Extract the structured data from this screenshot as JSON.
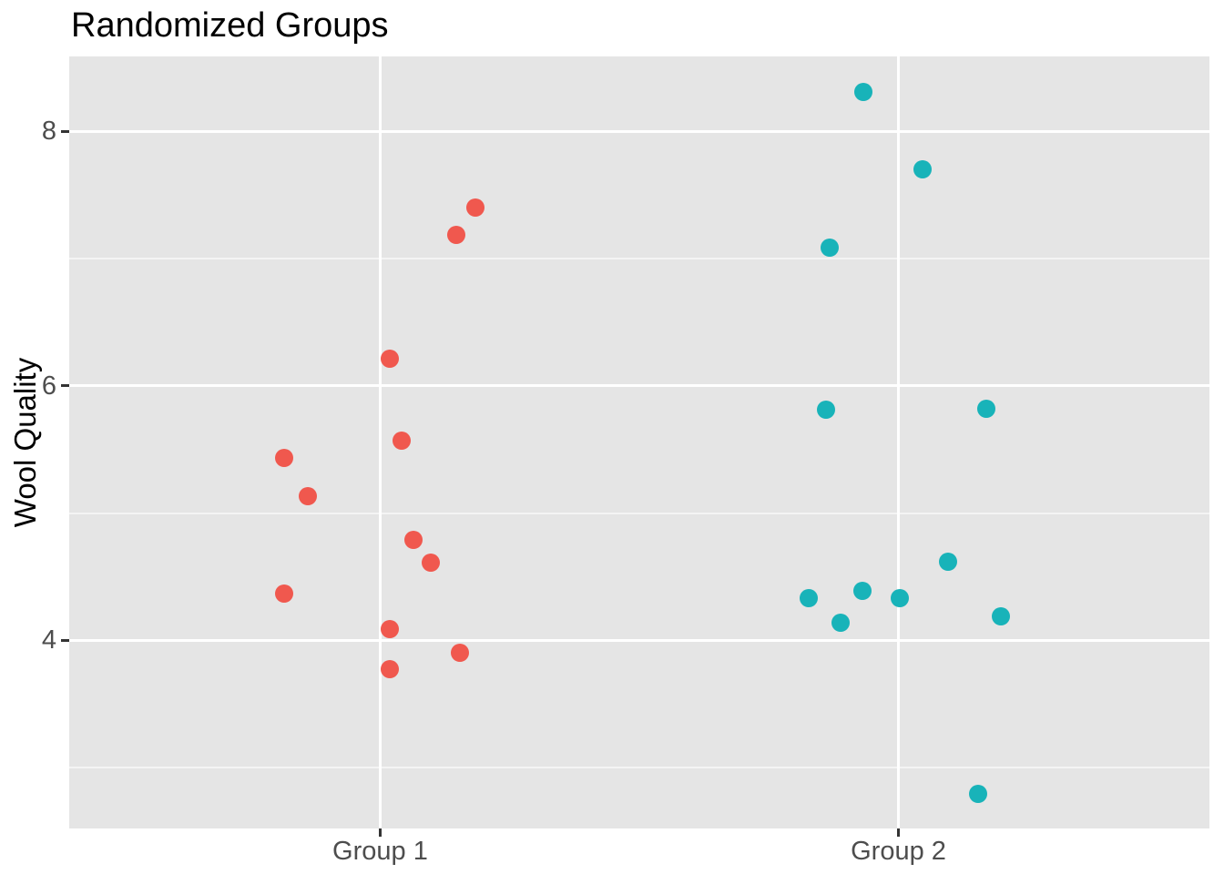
{
  "title": "Randomized Groups",
  "colors": {
    "group1": "#F0584E",
    "group2": "#18B3B9",
    "panel_background": "#E5E5E5",
    "gridline": "#FFFFFF",
    "tick_text": "#4D4D4D",
    "tick_mark": "#333333",
    "title_text": "#000000"
  },
  "chart_data": {
    "type": "scatter",
    "title": "Randomized Groups",
    "xlabel": "",
    "ylabel": "Wool Quality",
    "x_categories": [
      "Group 1",
      "Group 2"
    ],
    "x_category_positions": [
      1,
      2
    ],
    "xlim": [
      0.4,
      2.6
    ],
    "y_ticks": [
      4,
      6,
      8
    ],
    "y_minor_gridlines": [
      3,
      5,
      7
    ],
    "ylim": [
      2.52,
      8.59
    ],
    "grid": "on",
    "legend": "none",
    "jittered": true,
    "series": [
      {
        "name": "Group 1",
        "color": "#F0584E",
        "points": [
          {
            "x": 1.184,
            "y": 7.4
          },
          {
            "x": 1.146,
            "y": 7.19
          },
          {
            "x": 1.018,
            "y": 6.21
          },
          {
            "x": 1.042,
            "y": 5.57
          },
          {
            "x": 0.814,
            "y": 5.43
          },
          {
            "x": 0.86,
            "y": 5.13
          },
          {
            "x": 1.065,
            "y": 4.79
          },
          {
            "x": 1.098,
            "y": 4.61
          },
          {
            "x": 0.814,
            "y": 4.37
          },
          {
            "x": 1.018,
            "y": 4.09
          },
          {
            "x": 1.154,
            "y": 3.9
          },
          {
            "x": 1.018,
            "y": 3.77
          }
        ]
      },
      {
        "name": "Group 2",
        "color": "#18B3B9",
        "points": [
          {
            "x": 1.932,
            "y": 8.31
          },
          {
            "x": 2.047,
            "y": 7.7
          },
          {
            "x": 1.868,
            "y": 7.09
          },
          {
            "x": 1.861,
            "y": 5.81
          },
          {
            "x": 2.17,
            "y": 5.82
          },
          {
            "x": 2.095,
            "y": 4.62
          },
          {
            "x": 1.826,
            "y": 4.33
          },
          {
            "x": 1.93,
            "y": 4.39
          },
          {
            "x": 2.002,
            "y": 4.33
          },
          {
            "x": 1.888,
            "y": 4.14
          },
          {
            "x": 2.198,
            "y": 4.19
          },
          {
            "x": 2.153,
            "y": 2.79
          }
        ]
      }
    ]
  }
}
